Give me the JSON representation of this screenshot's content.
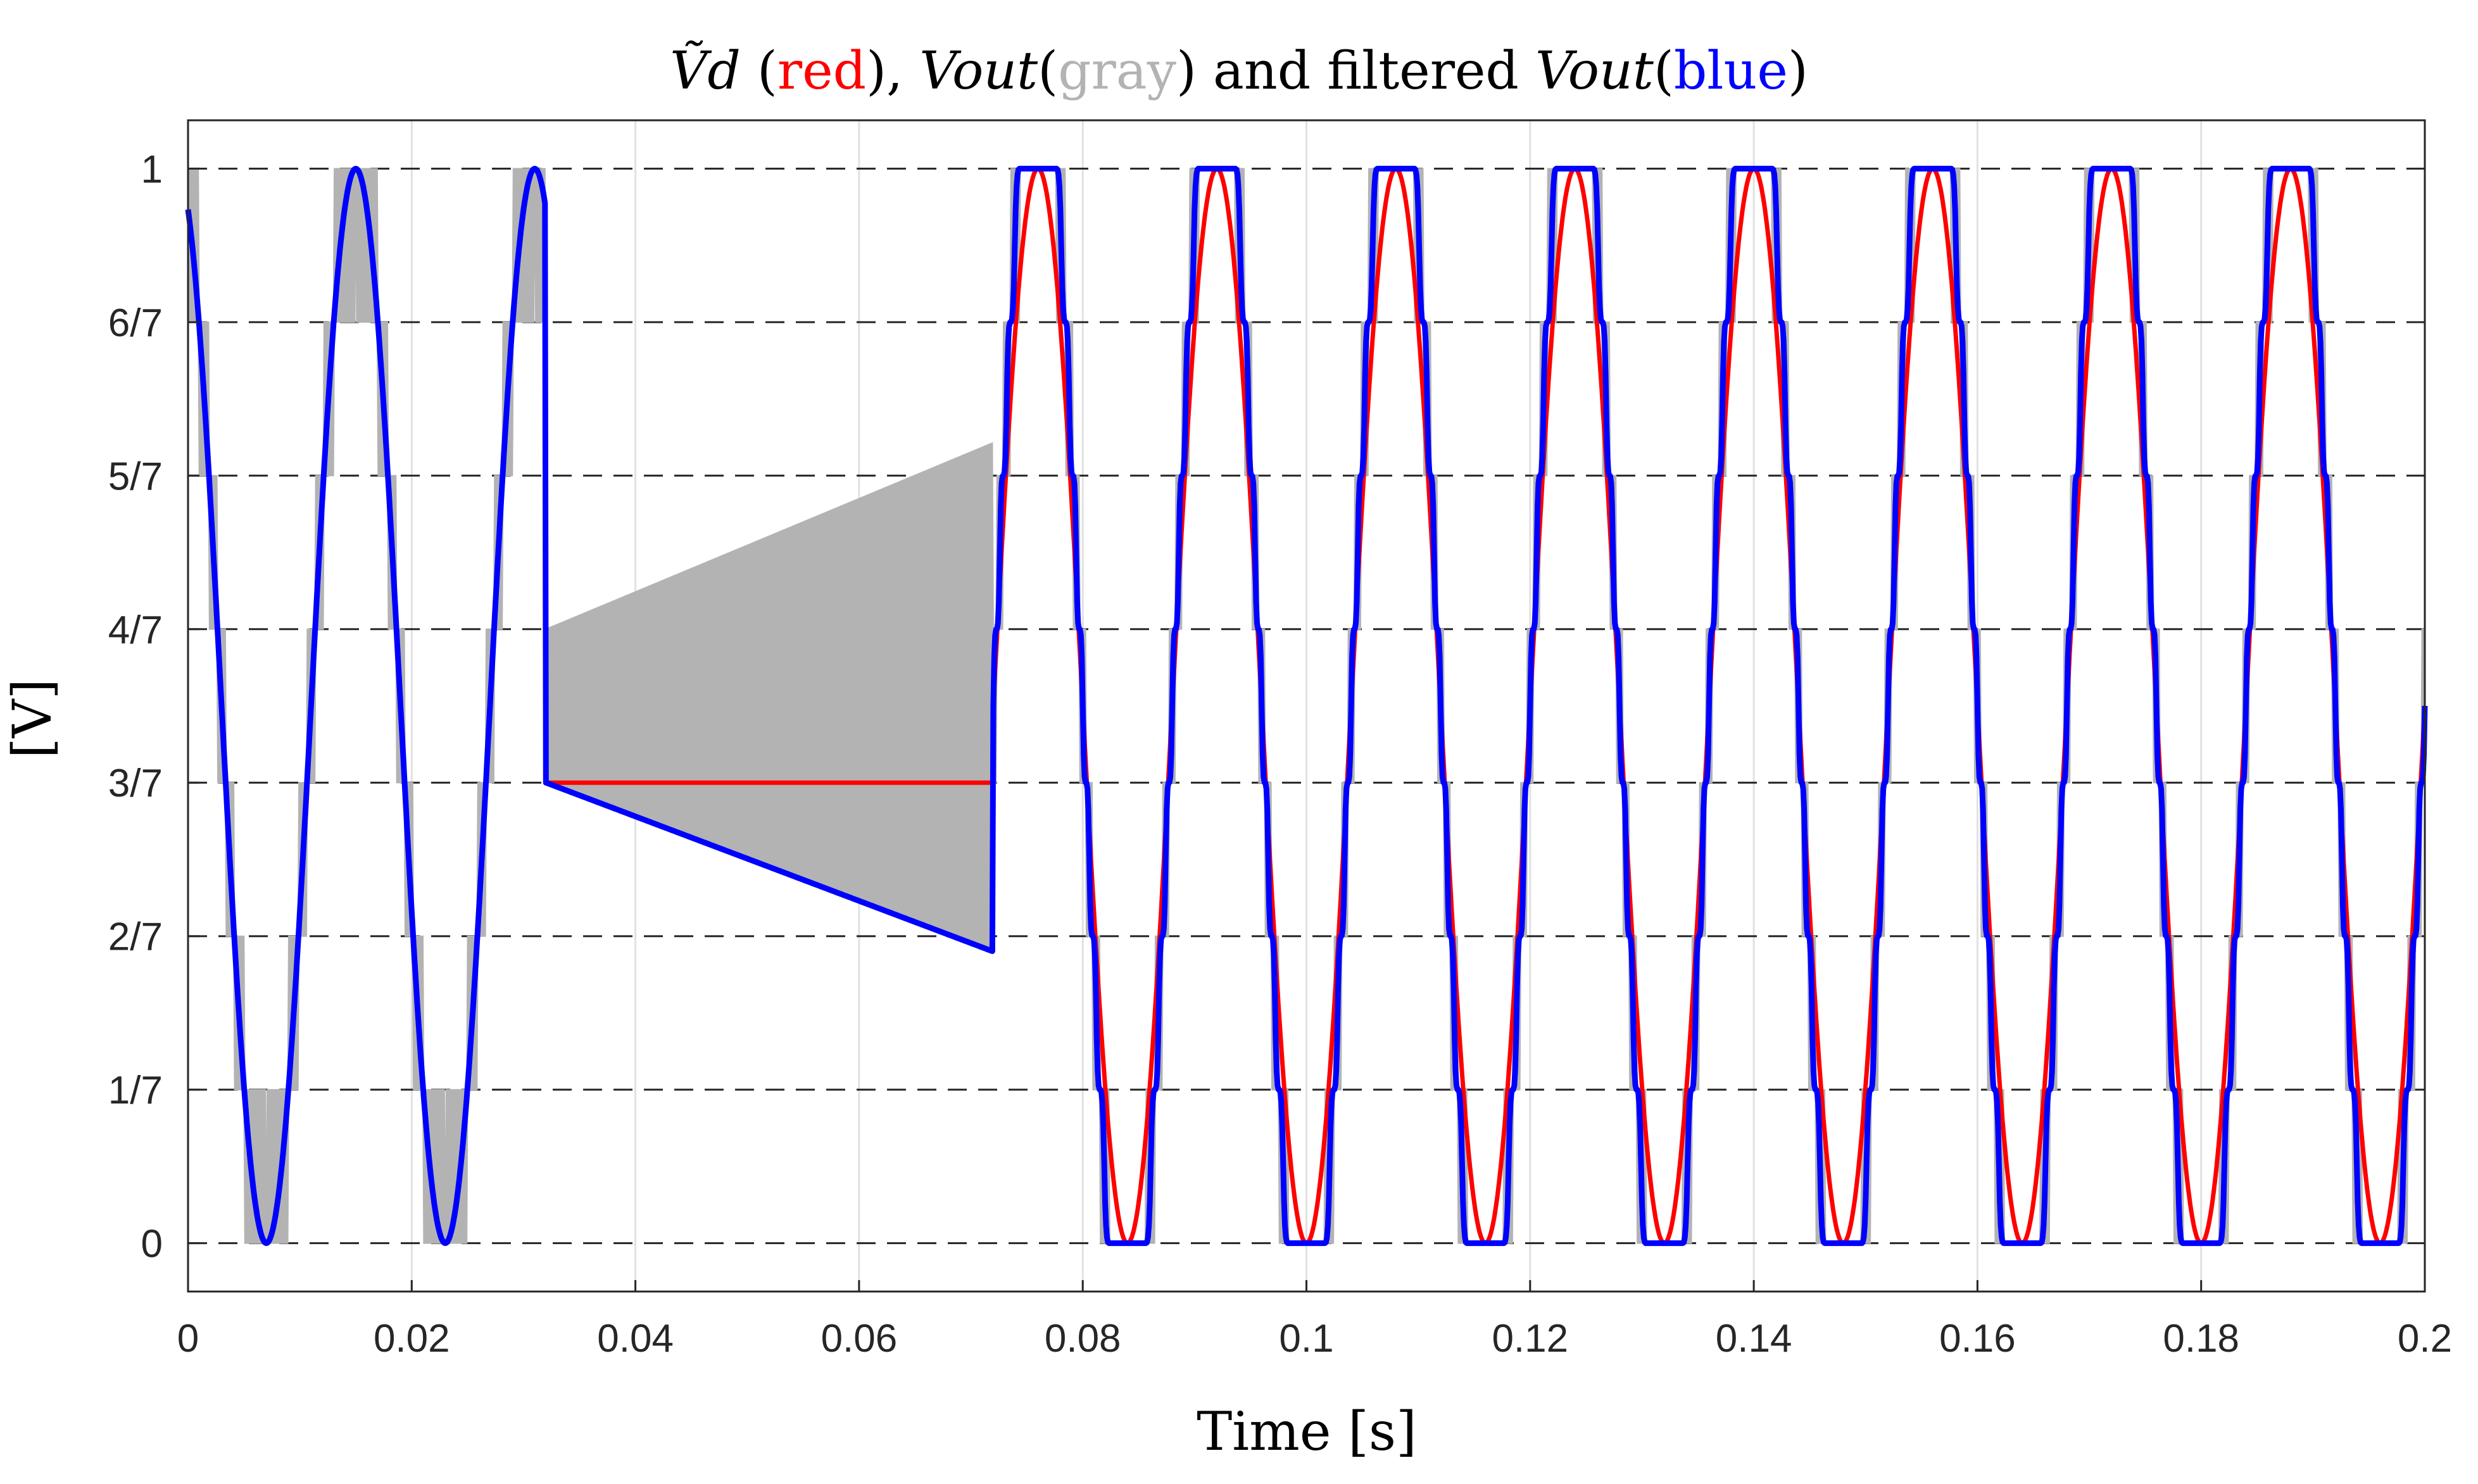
{
  "chart_data": {
    "type": "line",
    "title": {
      "parts": [
        {
          "text": "Ṽd",
          "color": "#000000",
          "italic": true
        },
        {
          "text": " (",
          "color": "#000000"
        },
        {
          "text": "red",
          "color": "#ff0000"
        },
        {
          "text": "), ",
          "color": "#000000"
        },
        {
          "text": "Vout",
          "color": "#000000",
          "italic": true
        },
        {
          "text": "(",
          "color": "#000000"
        },
        {
          "text": "gray",
          "color": "#b3b3b3"
        },
        {
          "text": ") and filtered ",
          "color": "#000000"
        },
        {
          "text": "Vout",
          "color": "#000000",
          "italic": true
        },
        {
          "text": "(",
          "color": "#000000"
        },
        {
          "text": "blue",
          "color": "#0000ff"
        },
        {
          "text": ")",
          "color": "#000000"
        }
      ]
    },
    "xlabel": "Time [s]",
    "ylabel": "[V]",
    "xlim": [
      0,
      0.2
    ],
    "ylim": [
      -0.045,
      1.045
    ],
    "xticks": [
      0,
      0.02,
      0.04,
      0.06,
      0.08,
      0.1,
      0.12,
      0.14,
      0.16,
      0.18,
      0.2
    ],
    "xtick_labels": [
      "0",
      "0.02",
      "0.04",
      "0.06",
      "0.08",
      "0.1",
      "0.12",
      "0.14",
      "0.16",
      "0.18",
      "0.2"
    ],
    "yticks": [
      0,
      0.142857,
      0.285714,
      0.428571,
      0.571429,
      0.714286,
      0.857143,
      1
    ],
    "ytick_labels": [
      "0",
      "1/7",
      "2/7",
      "3/7",
      "4/7",
      "5/7",
      "6/7",
      "1"
    ],
    "grid": {
      "x": "solid-light",
      "y": "dashed-dark"
    },
    "levels": 7,
    "signal": {
      "period": 0.016,
      "segment1": {
        "t_start": 0,
        "t_end": 0.032,
        "phase_offset": 0.007,
        "mode": "sinusoid"
      },
      "fault": {
        "t_start": 0.032,
        "t_end": 0.072,
        "vd_hold": 0.428571,
        "vout_upper_start": 0.5714,
        "vout_upper_end": 0.745,
        "vout_lower_start": 0.4286,
        "vout_lower_end": 0.2714
      },
      "segment2": {
        "t_start": 0.072,
        "t_end": 0.2,
        "phase_offset": 0.004,
        "mode": "flat-topped"
      }
    },
    "series": [
      {
        "name": "Vout",
        "color": "#b3b3b3",
        "role": "staircase PWM output"
      },
      {
        "name": "filtered Vout",
        "color": "#0000ff",
        "role": "filtered output"
      },
      {
        "name": "Vd",
        "color": "#ff0000",
        "role": "reference"
      }
    ]
  }
}
